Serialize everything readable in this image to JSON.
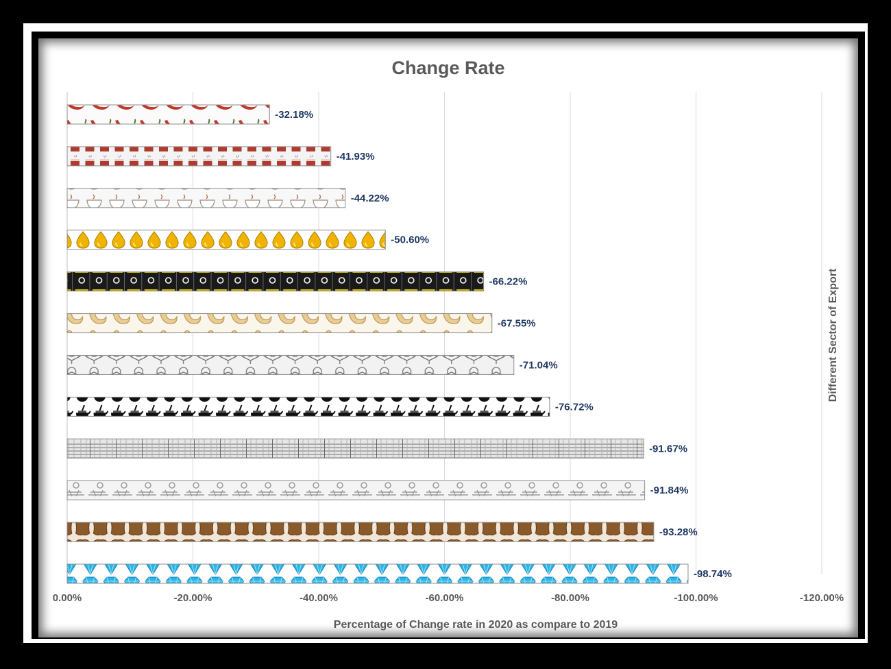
{
  "chart_data": {
    "type": "bar",
    "orientation": "horizontal",
    "title": "Change Rate",
    "xlabel": "Percentage of Change rate in 2020 as compare to 2019",
    "ylabel": "Different Sector of Export",
    "xlim": [
      0,
      -120
    ],
    "xticks": [
      0,
      -20,
      -40,
      -60,
      -80,
      -100,
      -120
    ],
    "tick_labels": [
      "0.00%",
      "-20.00%",
      "-40.00%",
      "-60.00%",
      "-80.00%",
      "-100.00%",
      "-120.00%"
    ],
    "grid": "vertical",
    "values": [
      -32.18,
      -41.93,
      -44.22,
      -50.6,
      -66.22,
      -67.55,
      -71.04,
      -76.72,
      -91.67,
      -91.84,
      -93.28,
      -98.74
    ],
    "data_labels": [
      "-32.18%",
      "-41.93%",
      "-44.22%",
      "-50.60%",
      "-66.22%",
      "-67.55%",
      "-71.04%",
      "-76.72%",
      "-91.67%",
      "-91.84%",
      "-93.28%",
      "-98.74%"
    ],
    "bar_icons": [
      "chili-icon",
      "tea-glass-icon",
      "coffee-cup-icon",
      "oil-drop-icon",
      "oil-barrel-icon",
      "cashew-icon",
      "machinery-icon",
      "tea-pot-icon",
      "textile-icon",
      "spice-grinder-icon",
      "leather-hide-icon",
      "diamond-icon"
    ],
    "colors": {
      "chili": "#c0392b",
      "tea": "#b03a2e",
      "coffee": "#d5c8b8",
      "oil": "#f0b400",
      "barrel": "#1a1a1a",
      "cashew": "#e8cc94",
      "machinery": "#9e9e9e",
      "teapot": "#111111",
      "textile": "#8a8a8a",
      "grinder": "#a0a0a0",
      "leather": "#8b5a2b",
      "diamond": "#29b6e8",
      "grid": "#d9d9d9",
      "data_label": "#1f3864",
      "text": "#595959"
    }
  }
}
